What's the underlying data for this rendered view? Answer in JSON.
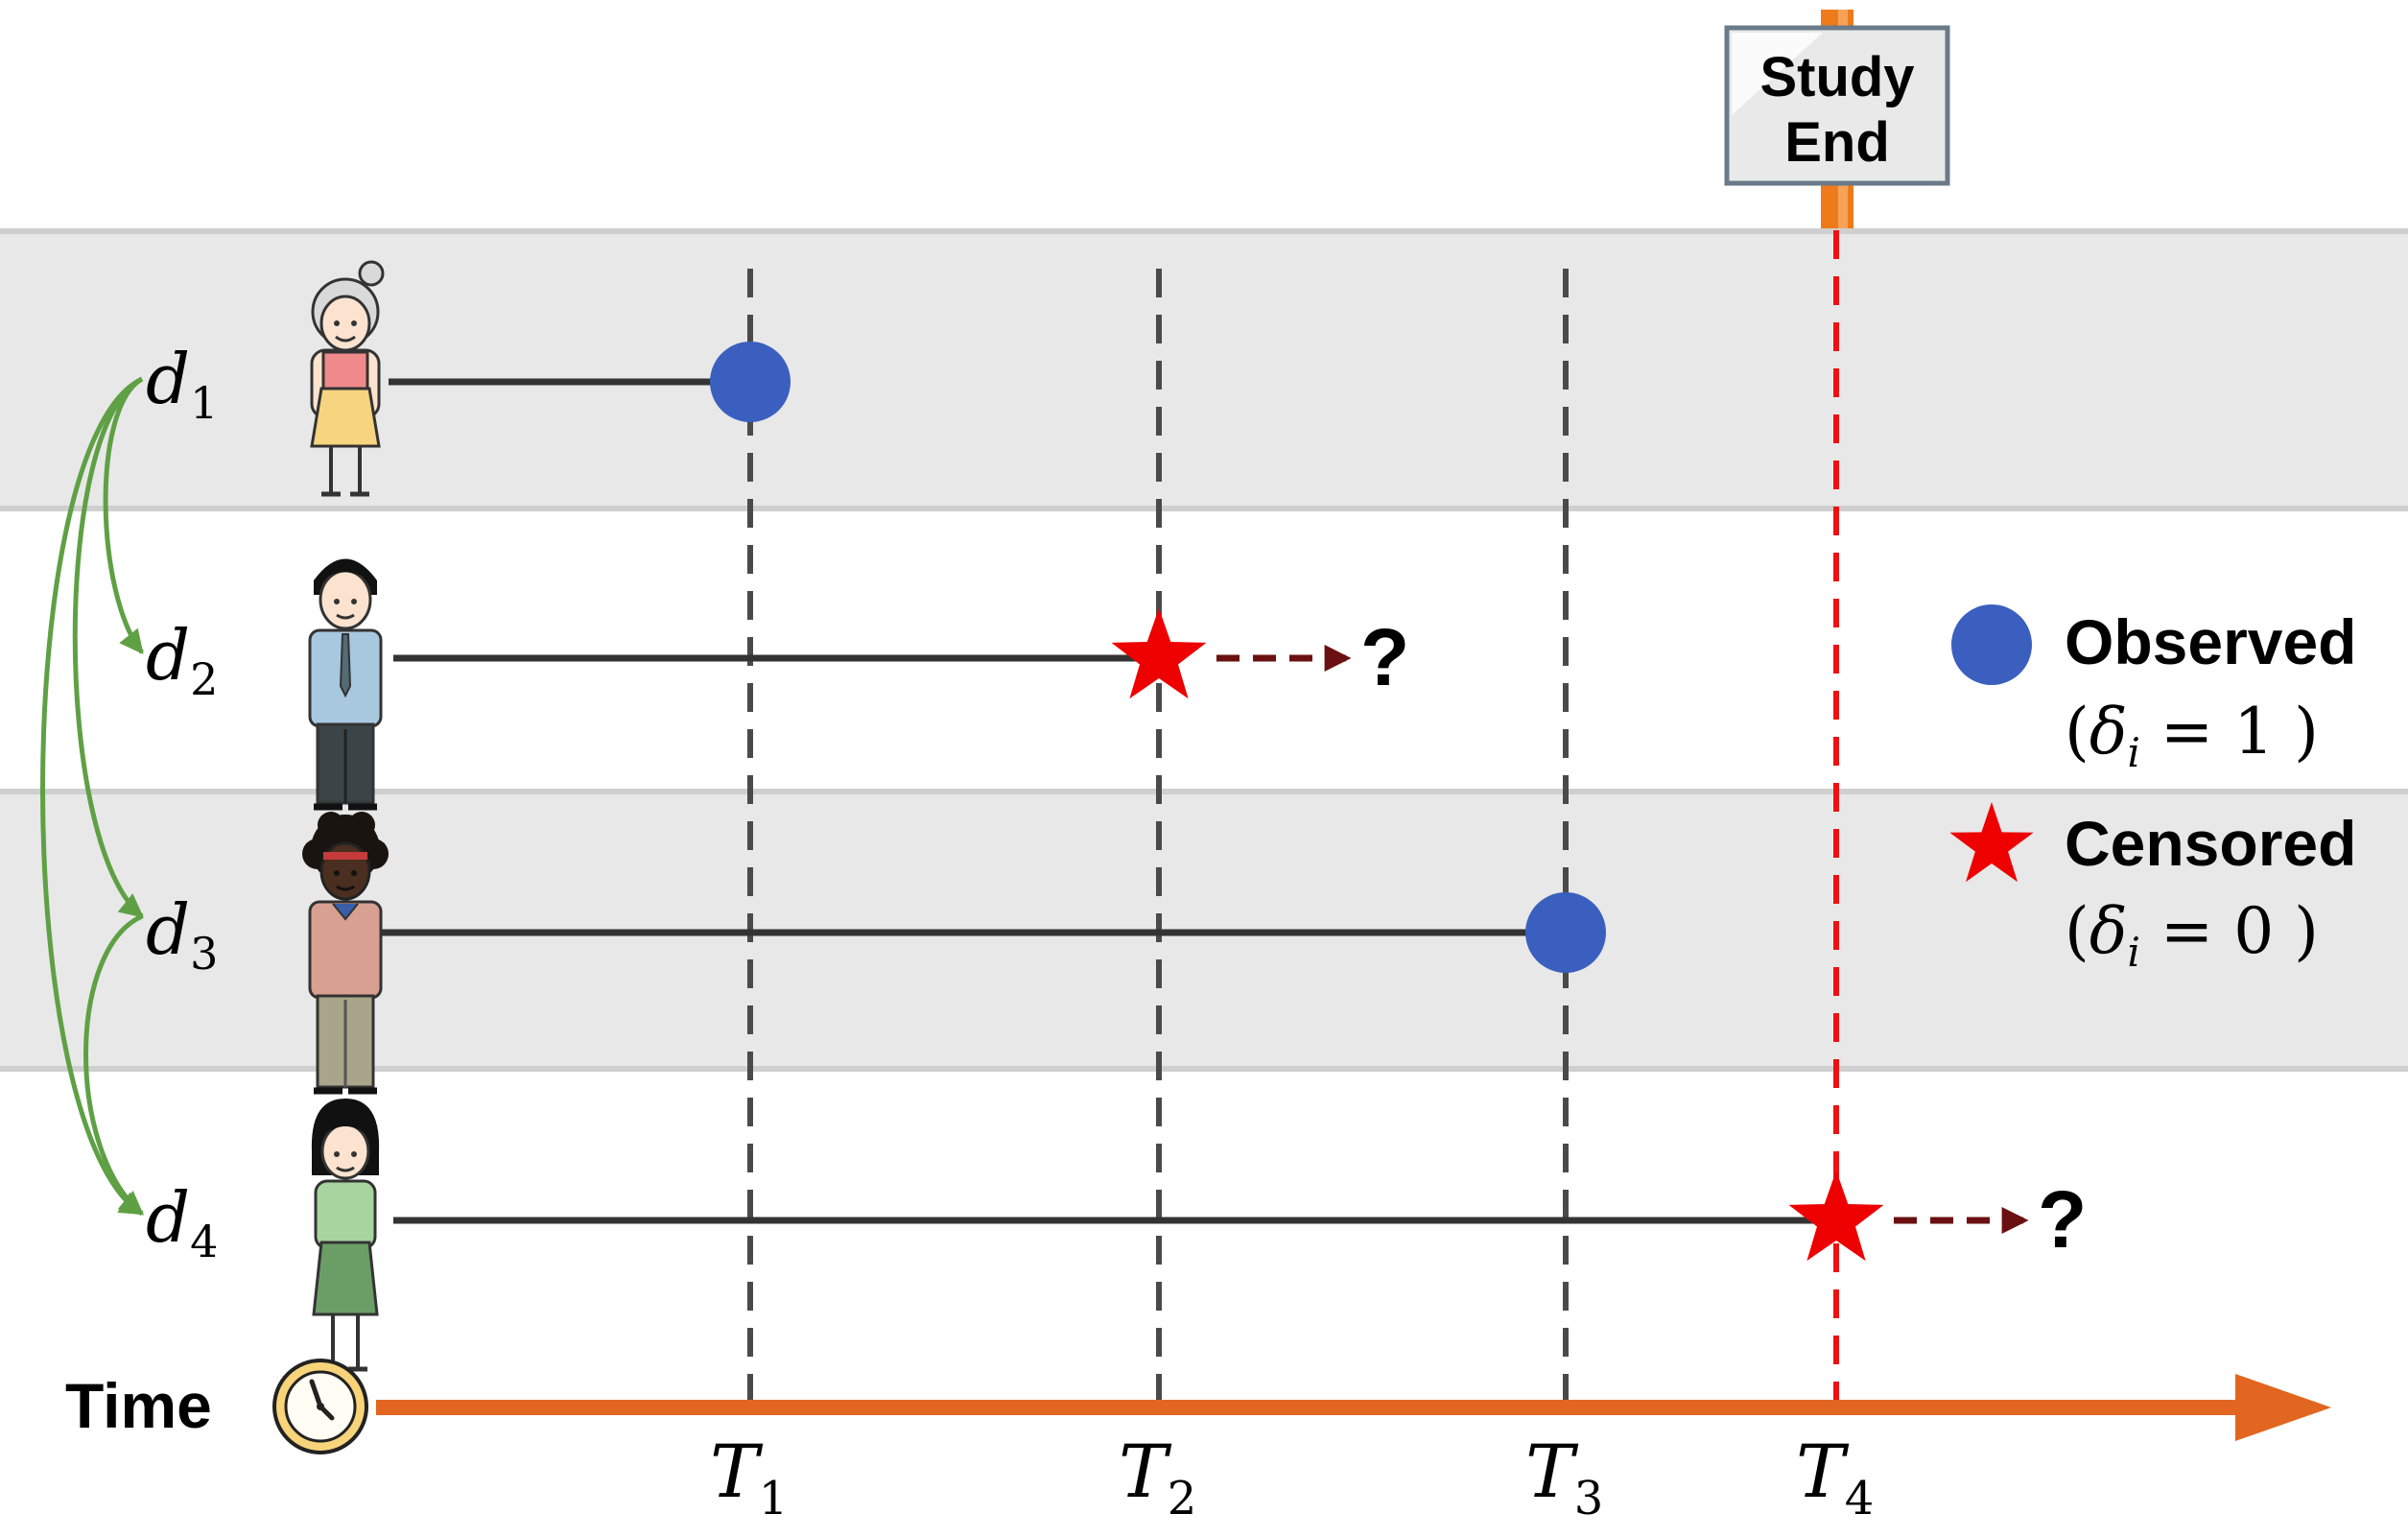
{
  "study_end_sign": {
    "line1": "Study",
    "line2": "End"
  },
  "time_axis_label": "Time",
  "legend": {
    "observed": {
      "label": "Observed",
      "delta_symbol": "δ",
      "delta_sub": "i",
      "delta_value": "1"
    },
    "censored": {
      "label": "Censored",
      "delta_symbol": "δ",
      "delta_sub": "i",
      "delta_value": "0"
    }
  },
  "censor_marker_text": "?",
  "time_points": [
    {
      "sym": "T",
      "sub": "1"
    },
    {
      "sym": "T",
      "sub": "2"
    },
    {
      "sym": "T",
      "sub": "3"
    },
    {
      "sym": "T",
      "sub": "4"
    }
  ],
  "subjects": [
    {
      "sym": "d",
      "sub": "1",
      "event_at": 1,
      "status": "observed"
    },
    {
      "sym": "d",
      "sub": "2",
      "event_at": 2,
      "status": "censored"
    },
    {
      "sym": "d",
      "sub": "3",
      "event_at": 3,
      "status": "observed"
    },
    {
      "sym": "d",
      "sub": "4",
      "event_at": 4,
      "status": "censored"
    }
  ],
  "colors": {
    "observed": "#3a5fbf",
    "censored": "#ee0000",
    "study_end_line": "#ee1111",
    "time_axis": "#e2661f",
    "censor_arrow": "#6b1010",
    "similarity_arrows": "#5fa045",
    "row_band": "#e8e8e8",
    "row_border": "#cfcfcf",
    "timeline": "#333333",
    "grid": "#4a4a4a"
  }
}
